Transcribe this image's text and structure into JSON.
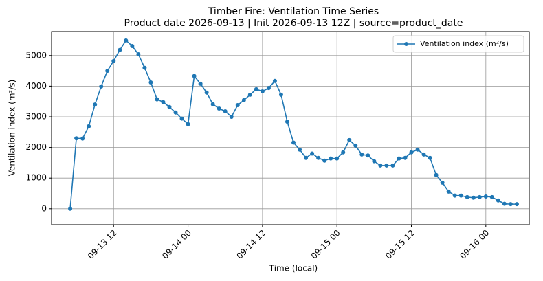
{
  "chart_data": {
    "type": "line",
    "title": "Timber Fire: Ventilation Time Series",
    "subtitle": "Product date 2026-09-13 | Init 2026-09-13 12Z | source=product_date",
    "x_label": "Time (local)",
    "y_label": "Ventilation index (m²/s)",
    "x": [
      "09-13 05",
      "09-13 06",
      "09-13 07",
      "09-13 08",
      "09-13 09",
      "09-13 10",
      "09-13 11",
      "09-13 12",
      "09-13 13",
      "09-13 14",
      "09-13 15",
      "09-13 16",
      "09-13 17",
      "09-13 18",
      "09-13 19",
      "09-13 20",
      "09-13 21",
      "09-13 22",
      "09-13 23",
      "09-14 00",
      "09-14 01",
      "09-14 02",
      "09-14 03",
      "09-14 04",
      "09-14 05",
      "09-14 06",
      "09-14 07",
      "09-14 08",
      "09-14 09",
      "09-14 10",
      "09-14 11",
      "09-14 12",
      "09-14 13",
      "09-14 14",
      "09-14 15",
      "09-14 16",
      "09-14 17",
      "09-14 18",
      "09-14 19",
      "09-14 20",
      "09-14 21",
      "09-14 22",
      "09-14 23",
      "09-15 00",
      "09-15 01",
      "09-15 02",
      "09-15 03",
      "09-15 04",
      "09-15 05",
      "09-15 06",
      "09-15 07",
      "09-15 08",
      "09-15 09",
      "09-15 10",
      "09-15 11",
      "09-15 12",
      "09-15 13",
      "09-15 14",
      "09-15 15",
      "09-15 16",
      "09-15 17",
      "09-15 18",
      "09-15 19",
      "09-15 20",
      "09-15 21",
      "09-15 22",
      "09-15 23",
      "09-16 00",
      "09-16 01",
      "09-16 02",
      "09-16 03",
      "09-16 04",
      "09-16 05"
    ],
    "series": [
      {
        "name": "Ventilation index (m²/s)",
        "color": "#1f77b4",
        "values": [
          0,
          2300,
          2290,
          2690,
          3400,
          3990,
          4500,
          4820,
          5180,
          5490,
          5310,
          5040,
          4600,
          4120,
          3570,
          3480,
          3320,
          3140,
          2940,
          2760,
          4330,
          4080,
          3790,
          3410,
          3270,
          3180,
          3000,
          3380,
          3540,
          3720,
          3900,
          3830,
          3940,
          4170,
          3720,
          2840,
          2160,
          1930,
          1660,
          1800,
          1660,
          1570,
          1640,
          1640,
          1840,
          2240,
          2060,
          1770,
          1740,
          1550,
          1410,
          1410,
          1410,
          1640,
          1660,
          1840,
          1930,
          1770,
          1660,
          1100,
          850,
          560,
          430,
          430,
          380,
          360,
          380,
          400,
          380,
          270,
          160,
          150,
          150
        ]
      }
    ],
    "xlim": [
      "09-13 02",
      "09-16 07"
    ],
    "xticks": [
      "09-13 12",
      "09-14 00",
      "09-14 12",
      "09-15 00",
      "09-15 12",
      "09-16 00"
    ],
    "ylim": [
      -520,
      5780
    ],
    "yticks": [
      0,
      1000,
      2000,
      3000,
      4000,
      5000
    ],
    "grid": true,
    "legend": "upper right"
  }
}
